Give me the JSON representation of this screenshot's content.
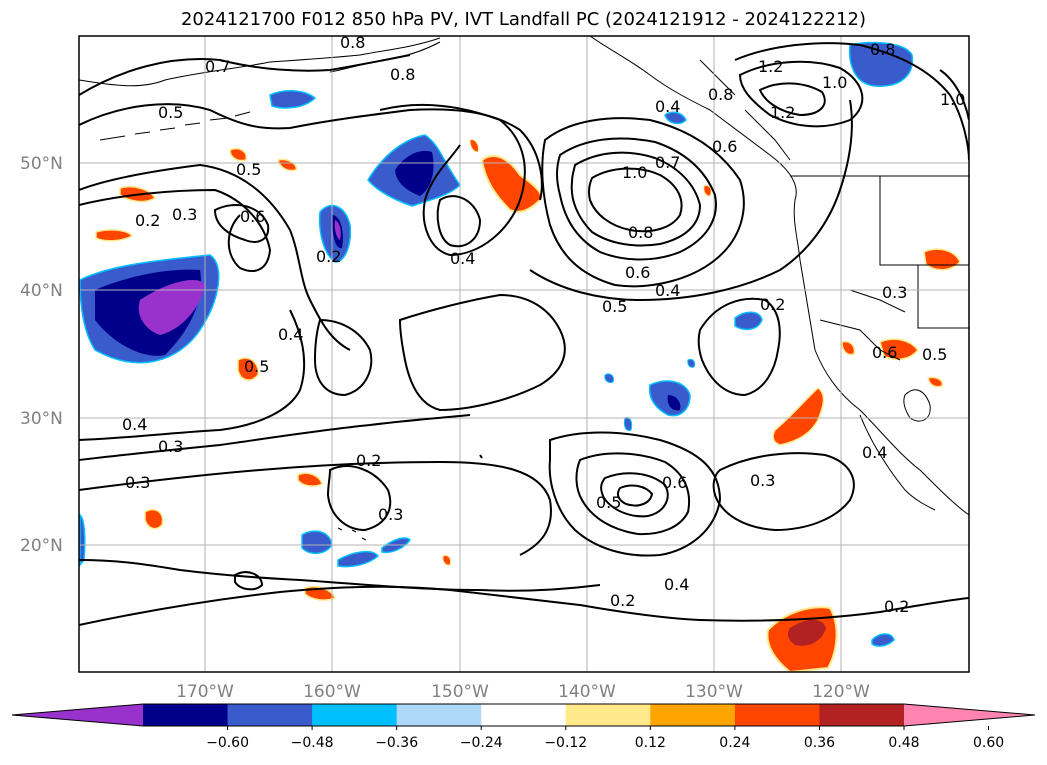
{
  "title": "2024121700 F012 850 hPa PV, IVT Landfall PC (2024121912 - 2024122212)",
  "lat_labels": [
    "50°N",
    "40°N",
    "30°N",
    "20°N"
  ],
  "lon_labels": [
    "170°W",
    "160°W",
    "150°W",
    "140°W",
    "130°W",
    "120°W"
  ],
  "contour_labels": [
    "0.7",
    "0.8",
    "0.8",
    "1.2",
    "0.8",
    "1.0",
    "1.2",
    "1.0",
    "0.5",
    "0.4",
    "0.7",
    "0.8",
    "0.6",
    "1.0",
    "0.5",
    "0.6",
    "0.2",
    "0.3",
    "0.2",
    "0.4",
    "0.8",
    "0.6",
    "0.4",
    "0.5",
    "0.3",
    "0.2",
    "0.5",
    "0.4",
    "0.6",
    "0.5",
    "0.4",
    "0.3",
    "0.2",
    "0.3",
    "0.3",
    "0.6",
    "0.5",
    "0.4",
    "0.3",
    "0.2",
    "0.4",
    "0.2"
  ],
  "colorbar": {
    "ticks": [
      "−0.60",
      "−0.48",
      "−0.36",
      "−0.24",
      "−0.12",
      "0.12",
      "0.24",
      "0.36",
      "0.48",
      "0.60"
    ],
    "colors": [
      "#9932cc",
      "#00008b",
      "#3a5bcc",
      "#00bfff",
      "#add8f7",
      "#ffffff",
      "#ffe98a",
      "#ffa500",
      "#ff4500",
      "#b22222",
      "#ff85b0"
    ]
  }
}
